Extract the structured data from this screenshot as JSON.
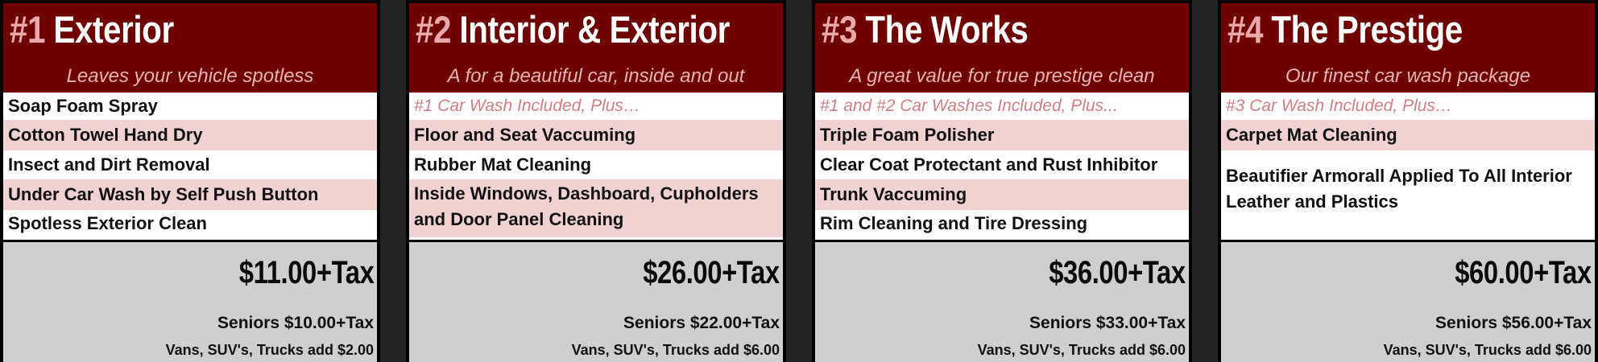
{
  "packages": [
    {
      "number": "#1",
      "name": "Exterior",
      "tagline": "Leaves your vehicle spotless",
      "features": [
        {
          "text": "Soap Foam Spray"
        },
        {
          "text": "Cotton Towel Hand Dry"
        },
        {
          "text": "Insect and Dirt Removal"
        },
        {
          "text": "Under Car Wash by Self Push Button"
        },
        {
          "text": "Spotless Exterior Clean"
        }
      ],
      "price": "$11.00+Tax",
      "seniors": "Seniors $10.00+Tax",
      "vans": "Vans, SUV's, Trucks  add $2.00"
    },
    {
      "number": "#2",
      "name": "Interior & Exterior",
      "tagline": "A for a beautiful car, inside and out",
      "features": [
        {
          "text": "#1 Car Wash Included, Plus…"
        },
        {
          "text": "Floor and Seat Vaccuming"
        },
        {
          "text": "Rubber Mat Cleaning"
        },
        {
          "text": "Inside Windows, Dashboard, Cupholders and Door Panel Cleaning"
        }
      ],
      "price": "$26.00+Tax",
      "seniors": "Seniors $22.00+Tax",
      "vans": "Vans, SUV's, Trucks add $6.00"
    },
    {
      "number": "#3",
      "name": "The Works",
      "tagline": "A great value for true prestige clean",
      "features": [
        {
          "text": "#1 and #2 Car Washes Included, Plus..."
        },
        {
          "text": "Triple Foam Polisher"
        },
        {
          "text": "Clear Coat Protectant and Rust Inhibitor"
        },
        {
          "text": "Trunk Vaccuming"
        },
        {
          "text": "Rim Cleaning and Tire Dressing"
        }
      ],
      "price": "$36.00+Tax",
      "seniors": "Seniors $33.00+Tax",
      "vans": "Vans, SUV's, Trucks add $6.00"
    },
    {
      "number": "#4",
      "name": "The Prestige",
      "tagline": "Our finest car wash package",
      "features": [
        {
          "text": "#3 Car Wash Included, Plus…"
        },
        {
          "text": "Carpet Mat Cleaning"
        },
        {
          "text": "Beautifier Armorall Applied To All Interior Leather and Plastics"
        }
      ],
      "price": "$60.00+Tax",
      "seniors": "Seniors $56.00+Tax",
      "vans": "Vans, SUV's, Trucks add $6.00"
    }
  ],
  "colors": {
    "header_bg": "#6e0000",
    "number_color": "#e8a9ab",
    "tagline_color": "#e7b2b4",
    "row_pink": "#f0d2d3",
    "note_color": "#cd8086",
    "price_bg": "#cfcfcf"
  }
}
